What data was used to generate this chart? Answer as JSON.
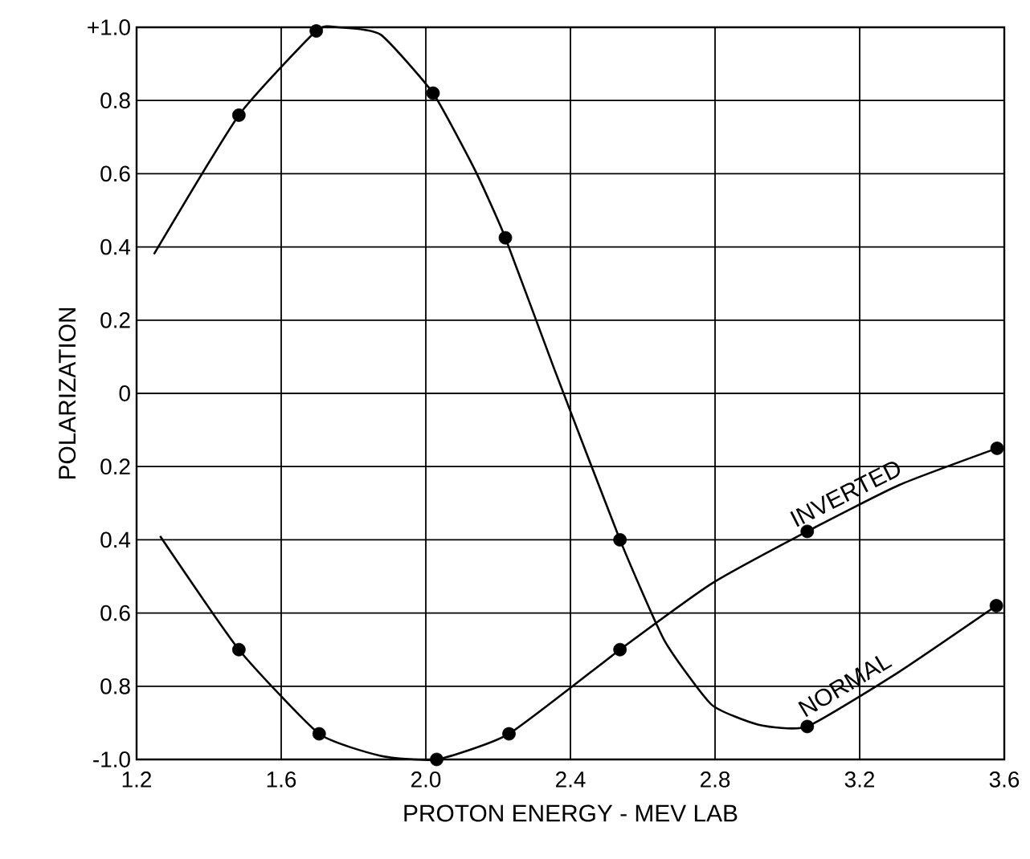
{
  "chart_data": {
    "type": "line",
    "xlabel": "PROTON ENERGY - MEV LAB",
    "ylabel": "POLARIZATION",
    "xlim": [
      1.2,
      3.6
    ],
    "ylim": [
      -1.0,
      1.0
    ],
    "xticks": [
      1.2,
      1.6,
      {
        "value": 2.0,
        "label": "2.0"
      },
      2.4,
      2.8,
      3.2,
      3.6
    ],
    "yticks": [
      {
        "value": 1.0,
        "label": "+1.0"
      },
      0.8,
      0.6,
      0.4,
      0.2,
      0,
      {
        "value": -0.2,
        "label": "0.2"
      },
      {
        "value": -0.4,
        "label": "0.4"
      },
      {
        "value": -0.6,
        "label": "0.6"
      },
      {
        "value": -0.8,
        "label": "0.8"
      },
      {
        "value": -1.0,
        "label": "-1.0"
      }
    ],
    "grid": true,
    "series": [
      {
        "name": "NORMAL",
        "color": "#000000",
        "marker": "none",
        "x": [
          1.248,
          1.483,
          1.697,
          1.757,
          1.875,
          2.02,
          2.136,
          2.22,
          2.354,
          2.537,
          2.66,
          2.79,
          2.92,
          3.055,
          3.31,
          3.578
        ],
        "values": [
          0.38,
          0.76,
          0.99,
          1.0,
          0.98,
          0.82,
          0.61,
          0.425,
          0.07,
          -0.4,
          -0.675,
          -0.85,
          -0.905,
          -0.91,
          -0.76,
          -0.58
        ]
      },
      {
        "name": "INVERTED",
        "color": "#000000",
        "marker": "none",
        "x": [
          1.265,
          1.483,
          1.705,
          1.875,
          2.03,
          2.23,
          2.537,
          2.79,
          3.055,
          3.31,
          3.58
        ],
        "values": [
          -0.39,
          -0.7,
          -0.93,
          -0.99,
          -1.0,
          -0.93,
          -0.7,
          -0.52,
          -0.377,
          -0.25,
          -0.15
        ]
      },
      {
        "type": "scatter",
        "color": "#000000",
        "marker": "circle",
        "x": [
          1.483,
          1.697,
          2.02,
          2.22,
          2.537,
          3.055,
          3.578
        ],
        "values": [
          0.76,
          0.99,
          0.82,
          0.425,
          -0.4,
          -0.91,
          -0.58
        ]
      },
      {
        "type": "scatter",
        "color": "#000000",
        "marker": "circle",
        "x": [
          1.483,
          1.705,
          2.03,
          2.23,
          2.537,
          3.055,
          3.58
        ],
        "values": [
          -0.7,
          -0.93,
          -1.0,
          -0.93,
          -0.7,
          -0.377,
          -0.15
        ]
      }
    ]
  }
}
